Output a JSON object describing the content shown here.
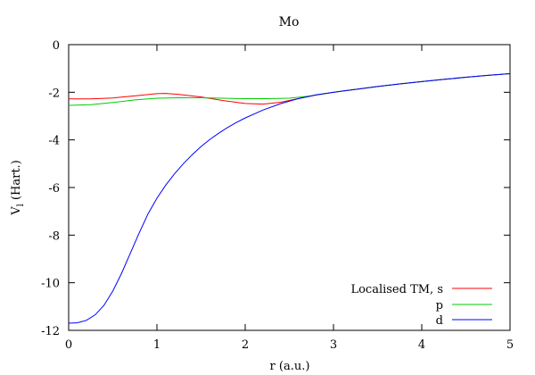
{
  "chart_data": {
    "type": "line",
    "title": "Mo",
    "xlabel": "r (a.u.)",
    "ylabel_main": "V",
    "ylabel_sub": "l",
    "ylabel_rest": " (Hart.)",
    "xlim": [
      0,
      5
    ],
    "ylim": [
      -12,
      0
    ],
    "xticks": [
      0,
      1,
      2,
      3,
      4,
      5
    ],
    "yticks": [
      0,
      -2,
      -4,
      -6,
      -8,
      -10,
      -12
    ],
    "grid": false,
    "legend_position": "bottom-right",
    "series": [
      {
        "name": "Localised TM, s",
        "color": "#ff0000",
        "x": [
          0,
          0.25,
          0.5,
          0.75,
          1.0,
          1.1,
          1.25,
          1.5,
          1.75,
          2.0,
          2.2,
          2.4,
          2.6,
          2.8,
          3.0,
          3.25,
          3.5,
          3.75,
          4.0,
          4.25,
          4.5,
          4.75,
          5.0
        ],
        "y": [
          -2.28,
          -2.28,
          -2.24,
          -2.15,
          -2.06,
          -2.05,
          -2.09,
          -2.2,
          -2.35,
          -2.47,
          -2.5,
          -2.42,
          -2.27,
          -2.12,
          -2.0,
          -1.88,
          -1.76,
          -1.65,
          -1.55,
          -1.46,
          -1.37,
          -1.29,
          -1.22
        ]
      },
      {
        "name": "p",
        "color": "#00cc00",
        "x": [
          0,
          0.25,
          0.5,
          0.75,
          1.0,
          1.25,
          1.5,
          1.75,
          2.0,
          2.25,
          2.5,
          2.75,
          3.0,
          3.25,
          3.5,
          3.75,
          4.0,
          4.25,
          4.5,
          4.75,
          5.0
        ],
        "y": [
          -2.55,
          -2.52,
          -2.43,
          -2.32,
          -2.25,
          -2.23,
          -2.23,
          -2.25,
          -2.27,
          -2.27,
          -2.25,
          -2.15,
          -2.0,
          -1.88,
          -1.76,
          -1.65,
          -1.55,
          -1.46,
          -1.37,
          -1.29,
          -1.22
        ]
      },
      {
        "name": "d",
        "color": "#0000ff",
        "x": [
          0,
          0.1,
          0.2,
          0.3,
          0.4,
          0.5,
          0.6,
          0.7,
          0.8,
          0.9,
          1.0,
          1.1,
          1.2,
          1.3,
          1.4,
          1.5,
          1.6,
          1.7,
          1.8,
          1.9,
          2.0,
          2.2,
          2.4,
          2.6,
          2.8,
          3.0,
          3.25,
          3.5,
          3.75,
          4.0,
          4.25,
          4.5,
          4.75,
          5.0
        ],
        "y": [
          -11.7,
          -11.68,
          -11.58,
          -11.35,
          -10.95,
          -10.35,
          -9.6,
          -8.75,
          -7.9,
          -7.1,
          -6.45,
          -5.9,
          -5.42,
          -5.0,
          -4.62,
          -4.28,
          -3.98,
          -3.72,
          -3.48,
          -3.27,
          -3.08,
          -2.75,
          -2.48,
          -2.27,
          -2.11,
          -2.0,
          -1.88,
          -1.76,
          -1.65,
          -1.55,
          -1.46,
          -1.37,
          -1.29,
          -1.22
        ]
      }
    ]
  }
}
